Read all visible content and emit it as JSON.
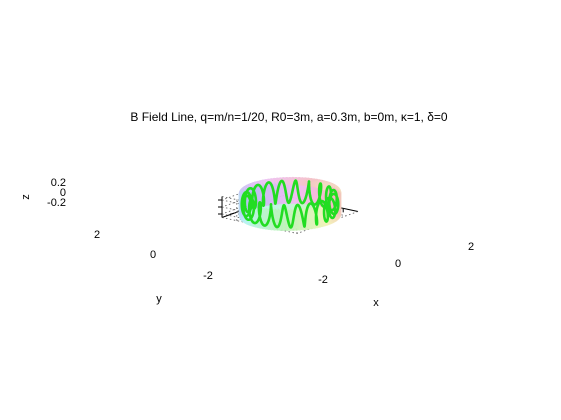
{
  "chart_data": {
    "type": "line",
    "title": "B Field Line, q=m/n=1/20, R0=3m, a=0.3m, b=0m, κ=1, δ=0",
    "xlabel": "x",
    "ylabel": "y",
    "zlabel": "z",
    "x_ticks": [
      "-2",
      "0",
      "2"
    ],
    "y_ticks": [
      "-2",
      "0",
      "2"
    ],
    "z_ticks": [
      "-0.2",
      "0",
      "0.2"
    ],
    "xlim": [
      -3.3,
      3.3
    ],
    "ylim": [
      -3.3,
      3.3
    ],
    "zlim": [
      -0.3,
      0.3
    ],
    "grid": true,
    "projection": "3d",
    "surface": {
      "name": "torus",
      "major_radius": 3,
      "minor_radius": 0.3,
      "colormap": "pastel rainbow"
    },
    "series": [
      {
        "helical_turns": 20,
        "toroidal_turns": 1,
        "color": "#22dd22"
      }
    ]
  }
}
